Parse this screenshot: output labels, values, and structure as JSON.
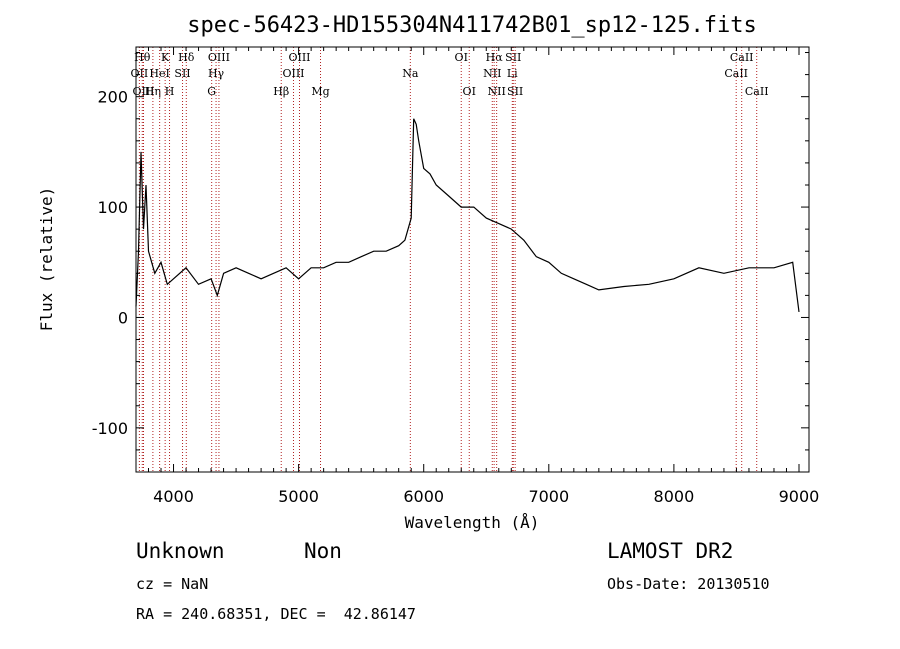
{
  "chart_data": {
    "type": "line",
    "title": "spec-56423-HD155304N411742B01_sp12-125.fits",
    "xlabel": "Wavelength (Å)",
    "ylabel": "Flux (relative)",
    "xlim": [
      3700,
      9080
    ],
    "ylim": [
      -140,
      245
    ],
    "x_ticks": [
      4000,
      5000,
      6000,
      7000,
      8000,
      9000
    ],
    "y_ticks": [
      -100,
      0,
      100,
      200
    ],
    "line_color": "#000000",
    "marker_color": "#b22222",
    "series": [
      {
        "values_x": [
          3700,
          3720,
          3740,
          3760,
          3780,
          3800,
          3850,
          3900,
          3950,
          4000,
          4100,
          4200,
          4300,
          4350,
          4400,
          4500,
          4600,
          4700,
          4800,
          4900,
          5000,
          5100,
          5200,
          5300,
          5400,
          5500,
          5600,
          5700,
          5800,
          5850,
          5900,
          5920,
          5940,
          5960,
          6000,
          6050,
          6100,
          6200,
          6300,
          6400,
          6500,
          6600,
          6700,
          6800,
          6900,
          7000,
          7100,
          7200,
          7300,
          7400,
          7600,
          7800,
          8000,
          8200,
          8400,
          8600,
          8800,
          8950,
          9000
        ],
        "values_y": [
          10,
          60,
          150,
          80,
          120,
          60,
          40,
          50,
          30,
          35,
          45,
          30,
          35,
          20,
          40,
          45,
          40,
          35,
          40,
          45,
          35,
          45,
          45,
          50,
          50,
          55,
          60,
          60,
          65,
          70,
          90,
          180,
          175,
          160,
          135,
          130,
          120,
          110,
          100,
          100,
          90,
          85,
          80,
          70,
          55,
          50,
          40,
          35,
          30,
          25,
          28,
          30,
          35,
          45,
          40,
          45,
          45,
          50,
          5
        ]
      }
    ],
    "line_markers": [
      {
        "label": "OII",
        "x": 3727,
        "row": 2
      },
      {
        "label": "Hθ",
        "x": 3750,
        "row": 1
      },
      {
        "label": "OIII",
        "x": 3760,
        "row": 3
      },
      {
        "label": "Hη",
        "x": 3835,
        "row": 3
      },
      {
        "label": "HeI",
        "x": 3889,
        "row": 2
      },
      {
        "label": "K",
        "x": 3933,
        "row": 1
      },
      {
        "label": "H",
        "x": 3968,
        "row": 3
      },
      {
        "label": "SII",
        "x": 4072,
        "row": 2
      },
      {
        "label": "Hδ",
        "x": 4102,
        "row": 1
      },
      {
        "label": "G",
        "x": 4305,
        "row": 3
      },
      {
        "label": "Hγ",
        "x": 4340,
        "row": 2
      },
      {
        "label": "OIII",
        "x": 4363,
        "row": 1
      },
      {
        "label": "Hβ",
        "x": 4861,
        "row": 3
      },
      {
        "label": "OIII",
        "x": 4959,
        "row": 2
      },
      {
        "label": "OIII",
        "x": 5007,
        "row": 1
      },
      {
        "label": "Mg",
        "x": 5175,
        "row": 3
      },
      {
        "label": "Na",
        "x": 5893,
        "row": 2
      },
      {
        "label": "OI",
        "x": 6300,
        "row": 1
      },
      {
        "label": "OI",
        "x": 6364,
        "row": 3
      },
      {
        "label": "NII",
        "x": 6548,
        "row": 2
      },
      {
        "label": "Hα",
        "x": 6563,
        "row": 1
      },
      {
        "label": "NII",
        "x": 6583,
        "row": 3
      },
      {
        "label": "SII",
        "x": 6716,
        "row": 1
      },
      {
        "label": "Li",
        "x": 6708,
        "row": 2
      },
      {
        "label": "SII",
        "x": 6731,
        "row": 3
      },
      {
        "label": "CaII",
        "x": 8498,
        "row": 2
      },
      {
        "label": "CaII",
        "x": 8542,
        "row": 1
      },
      {
        "label": "CaII",
        "x": 8662,
        "row": 3
      }
    ]
  },
  "info": {
    "class": "Unknown",
    "subclass": "Non",
    "survey": "LAMOST DR2",
    "cz": "cz = NaN",
    "obs_date": "Obs-Date: 20130510",
    "coords": "RA = 240.68351, DEC =  42.86147"
  }
}
